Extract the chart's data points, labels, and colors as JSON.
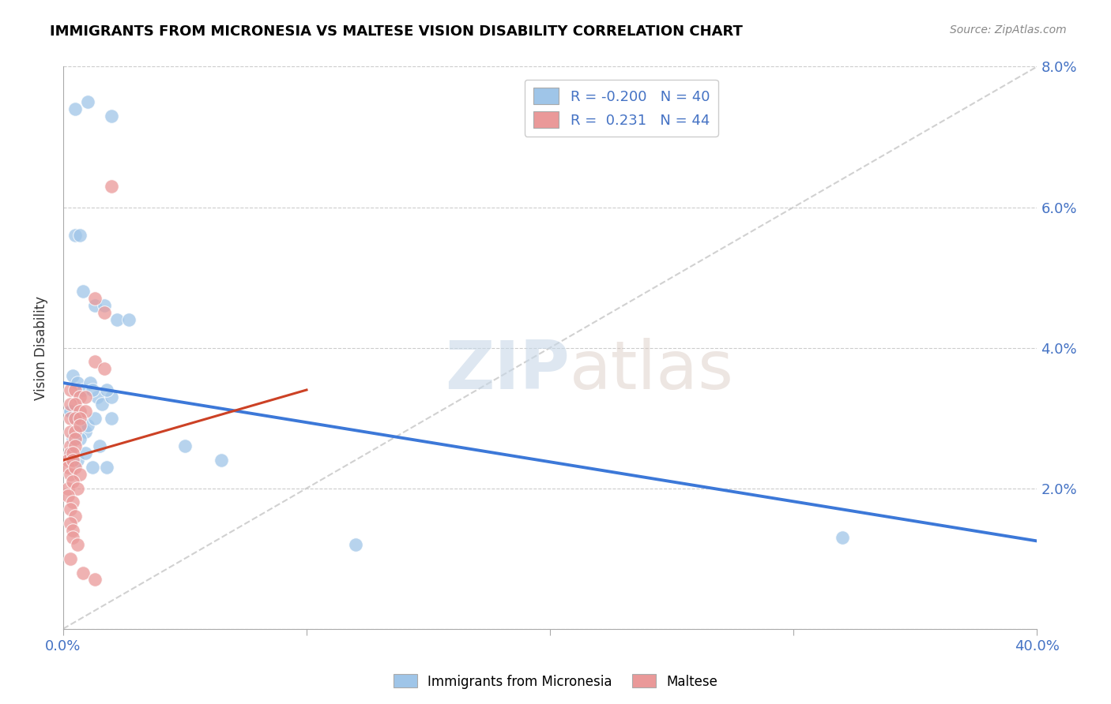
{
  "title": "IMMIGRANTS FROM MICRONESIA VS MALTESE VISION DISABILITY CORRELATION CHART",
  "source": "Source: ZipAtlas.com",
  "ylabel": "Vision Disability",
  "xlim": [
    0.0,
    0.4
  ],
  "ylim": [
    0.0,
    0.08
  ],
  "yticks": [
    0.0,
    0.02,
    0.04,
    0.06,
    0.08
  ],
  "ytick_labels": [
    "",
    "2.0%",
    "4.0%",
    "6.0%",
    "8.0%"
  ],
  "xticks": [
    0.0,
    0.1,
    0.2,
    0.3,
    0.4
  ],
  "blue_R": -0.2,
  "blue_N": 40,
  "pink_R": 0.231,
  "pink_N": 44,
  "blue_color": "#9fc5e8",
  "pink_color": "#ea9999",
  "blue_line_color": "#3c78d8",
  "pink_line_color": "#cc4125",
  "watermark_zip": "ZIP",
  "watermark_atlas": "atlas",
  "blue_scatter_x": [
    0.01,
    0.005,
    0.02,
    0.005,
    0.007,
    0.008,
    0.013,
    0.017,
    0.022,
    0.027,
    0.004,
    0.006,
    0.008,
    0.011,
    0.014,
    0.012,
    0.016,
    0.02,
    0.018,
    0.003,
    0.005,
    0.007,
    0.009,
    0.003,
    0.006,
    0.01,
    0.013,
    0.004,
    0.007,
    0.015,
    0.02,
    0.05,
    0.065,
    0.32,
    0.12,
    0.003,
    0.006,
    0.009,
    0.012,
    0.018
  ],
  "blue_scatter_y": [
    0.075,
    0.074,
    0.073,
    0.056,
    0.056,
    0.048,
    0.046,
    0.046,
    0.044,
    0.044,
    0.036,
    0.035,
    0.034,
    0.035,
    0.033,
    0.034,
    0.032,
    0.033,
    0.034,
    0.031,
    0.03,
    0.029,
    0.028,
    0.031,
    0.03,
    0.029,
    0.03,
    0.027,
    0.027,
    0.026,
    0.03,
    0.026,
    0.024,
    0.013,
    0.012,
    0.025,
    0.024,
    0.025,
    0.023,
    0.023
  ],
  "pink_scatter_x": [
    0.02,
    0.013,
    0.017,
    0.013,
    0.017,
    0.003,
    0.005,
    0.007,
    0.009,
    0.003,
    0.005,
    0.007,
    0.009,
    0.003,
    0.005,
    0.007,
    0.003,
    0.005,
    0.007,
    0.003,
    0.005,
    0.003,
    0.005,
    0.002,
    0.004,
    0.002,
    0.004,
    0.003,
    0.005,
    0.007,
    0.002,
    0.004,
    0.006,
    0.002,
    0.004,
    0.003,
    0.005,
    0.003,
    0.004,
    0.004,
    0.006,
    0.003,
    0.008,
    0.013
  ],
  "pink_scatter_y": [
    0.063,
    0.047,
    0.045,
    0.038,
    0.037,
    0.034,
    0.034,
    0.033,
    0.033,
    0.032,
    0.032,
    0.031,
    0.031,
    0.03,
    0.03,
    0.03,
    0.028,
    0.028,
    0.029,
    0.026,
    0.027,
    0.025,
    0.026,
    0.024,
    0.025,
    0.023,
    0.024,
    0.022,
    0.023,
    0.022,
    0.02,
    0.021,
    0.02,
    0.019,
    0.018,
    0.017,
    0.016,
    0.015,
    0.014,
    0.013,
    0.012,
    0.01,
    0.008,
    0.007
  ],
  "blue_trendline_x": [
    0.0,
    0.4
  ],
  "blue_trendline_y": [
    0.035,
    0.0125
  ],
  "pink_trendline_x": [
    0.0,
    0.1
  ],
  "pink_trendline_y": [
    0.024,
    0.034
  ],
  "diag_line_x": [
    0.0,
    0.4
  ],
  "diag_line_y": [
    0.0,
    0.08
  ]
}
